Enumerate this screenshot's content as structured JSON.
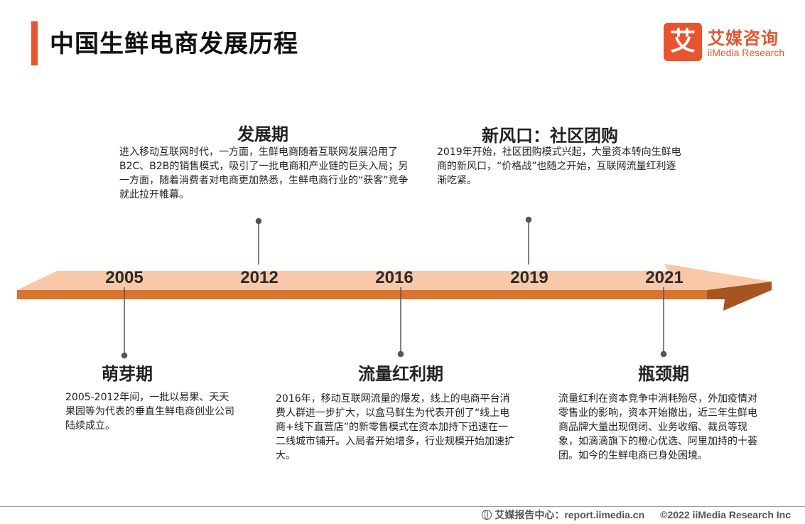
{
  "title": "中国生鲜电商发展历程",
  "logo": {
    "mark": "艾",
    "cn": "艾媒咨询",
    "en": "iiMedia Research"
  },
  "colors": {
    "accent": "#e8542f",
    "arrow_light": "#f8c8a8",
    "arrow_dark": "#d9742e"
  },
  "years": [
    "2005",
    "2012",
    "2016",
    "2019",
    "2021"
  ],
  "stages_above": [
    {
      "title": "发展期",
      "desc": "进入移动互联网时代，一方面，生鲜电商随着互联网发展沿用了B2C、B2B的销售模式，吸引了一批电商和产业链的巨头入局；另一方面，随着消费者对电商更加熟悉，生鲜电商行业的“获客”竞争就此拉开帷幕。"
    },
    {
      "title": "新风口：社区团购",
      "desc": "2019年开始，社区团购模式兴起，大量资本转向生鲜电商的新风口，“价格战”也随之开始，互联网流量红利逐渐吃紧。"
    }
  ],
  "stages_below": [
    {
      "title": "萌芽期",
      "desc": "2005-2012年间，一批以易果、天天果园等为代表的垂直生鲜电商创业公司陆续成立。"
    },
    {
      "title": "流量红利期",
      "desc": "2016年，移动互联网流量的爆发，线上的电商平台消费人群进一步扩大，以盒马鲜生为代表开创了“线上电商+线下直营店”的新零售模式在资本加持下迅速在一二线城市铺开。入局者开始增多，行业规模开始加速扩大。"
    },
    {
      "title": "瓶颈期",
      "desc": "流量红利在资本竞争中消耗殆尽，外加疫情对零售业的影响，资本开始撤出，近三年生鲜电商品牌大量出现倒闭、业务收缩、裁员等现象，如滴滴旗下的橙心优选、阿里加持的十荟团。如今的生鲜电商已身处困境。"
    }
  ],
  "footer": {
    "source": "艾媒报告中心：report.iimedia.cn",
    "copyright": "©2022  iiMedia Research  Inc"
  }
}
